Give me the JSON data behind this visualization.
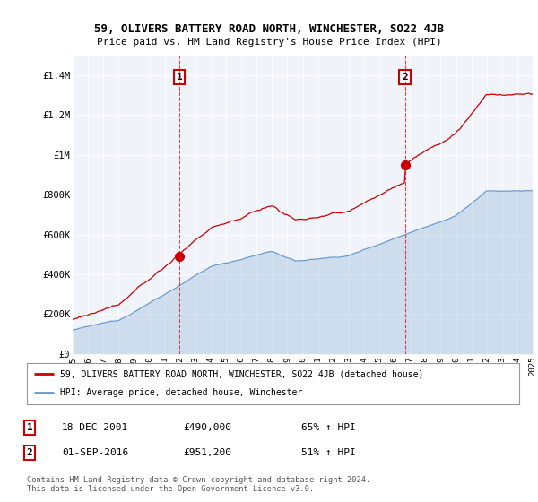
{
  "title": "59, OLIVERS BATTERY ROAD NORTH, WINCHESTER, SO22 4JB",
  "subtitle": "Price paid vs. HM Land Registry's House Price Index (HPI)",
  "ylim": [
    0,
    1500000
  ],
  "yticks": [
    0,
    200000,
    400000,
    600000,
    800000,
    1000000,
    1200000,
    1400000
  ],
  "ytick_labels": [
    "£0",
    "£200K",
    "£400K",
    "£600K",
    "£800K",
    "£1M",
    "£1.2M",
    "£1.4M"
  ],
  "xmin_year": 1995,
  "xmax_year": 2025,
  "xticks": [
    1995,
    1996,
    1997,
    1998,
    1999,
    2000,
    2001,
    2002,
    2003,
    2004,
    2005,
    2006,
    2007,
    2008,
    2009,
    2010,
    2011,
    2012,
    2013,
    2014,
    2015,
    2016,
    2017,
    2018,
    2019,
    2020,
    2021,
    2022,
    2023,
    2024,
    2025
  ],
  "property_color": "#cc0000",
  "hpi_color": "#6699cc",
  "hpi_fill_alpha": 0.25,
  "vline_color": "#cc0000",
  "marker1_x": 2001.97,
  "marker1_y": 490000,
  "marker2_x": 2016.67,
  "marker2_y": 951200,
  "legend_property": "59, OLIVERS BATTERY ROAD NORTH, WINCHESTER, SO22 4JB (detached house)",
  "legend_hpi": "HPI: Average price, detached house, Winchester",
  "annotation1_date": "18-DEC-2001",
  "annotation1_price": "£490,000",
  "annotation1_hpi": "65% ↑ HPI",
  "annotation2_date": "01-SEP-2016",
  "annotation2_price": "£951,200",
  "annotation2_hpi": "51% ↑ HPI",
  "footer": "Contains HM Land Registry data © Crown copyright and database right 2024.\nThis data is licensed under the Open Government Licence v3.0.",
  "plot_bg_color": "#f0f4fa",
  "fig_bg_color": "#ffffff"
}
